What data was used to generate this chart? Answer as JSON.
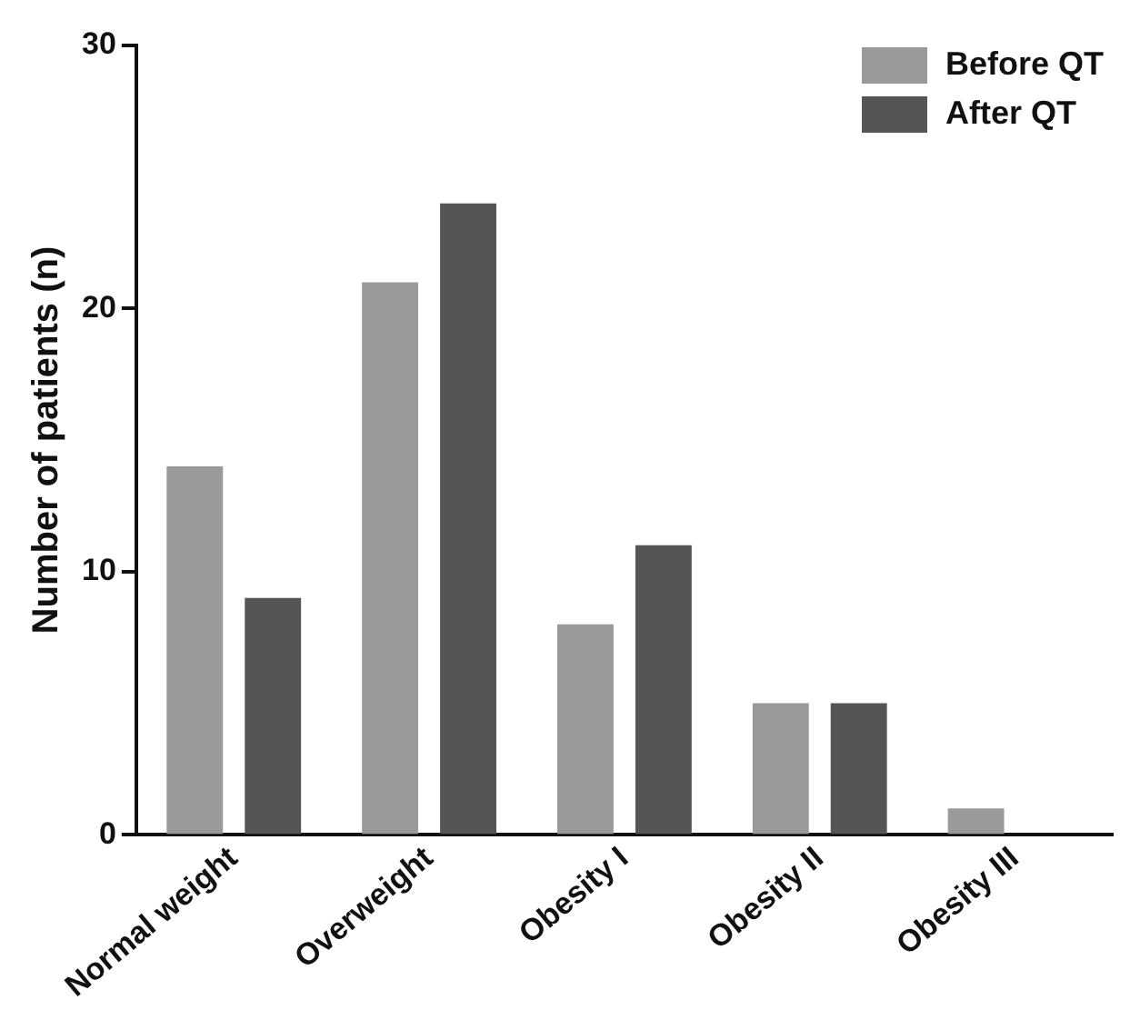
{
  "chart_data": {
    "type": "bar",
    "ylabel": "Number of patients (n)",
    "categories": [
      "Normal weight",
      "Overweight",
      "Obesity I",
      "Obesity II",
      "Obesity III"
    ],
    "series": [
      {
        "name": "Before QT",
        "color": "#9a9a9a",
        "values": [
          14,
          21,
          8,
          5,
          1
        ]
      },
      {
        "name": "After QT",
        "color": "#555555",
        "values": [
          9,
          24,
          11,
          5,
          0
        ]
      }
    ],
    "ylim": [
      0,
      30
    ],
    "yticks": [
      0,
      10,
      20,
      30
    ],
    "grid": false,
    "legend": "top right"
  }
}
